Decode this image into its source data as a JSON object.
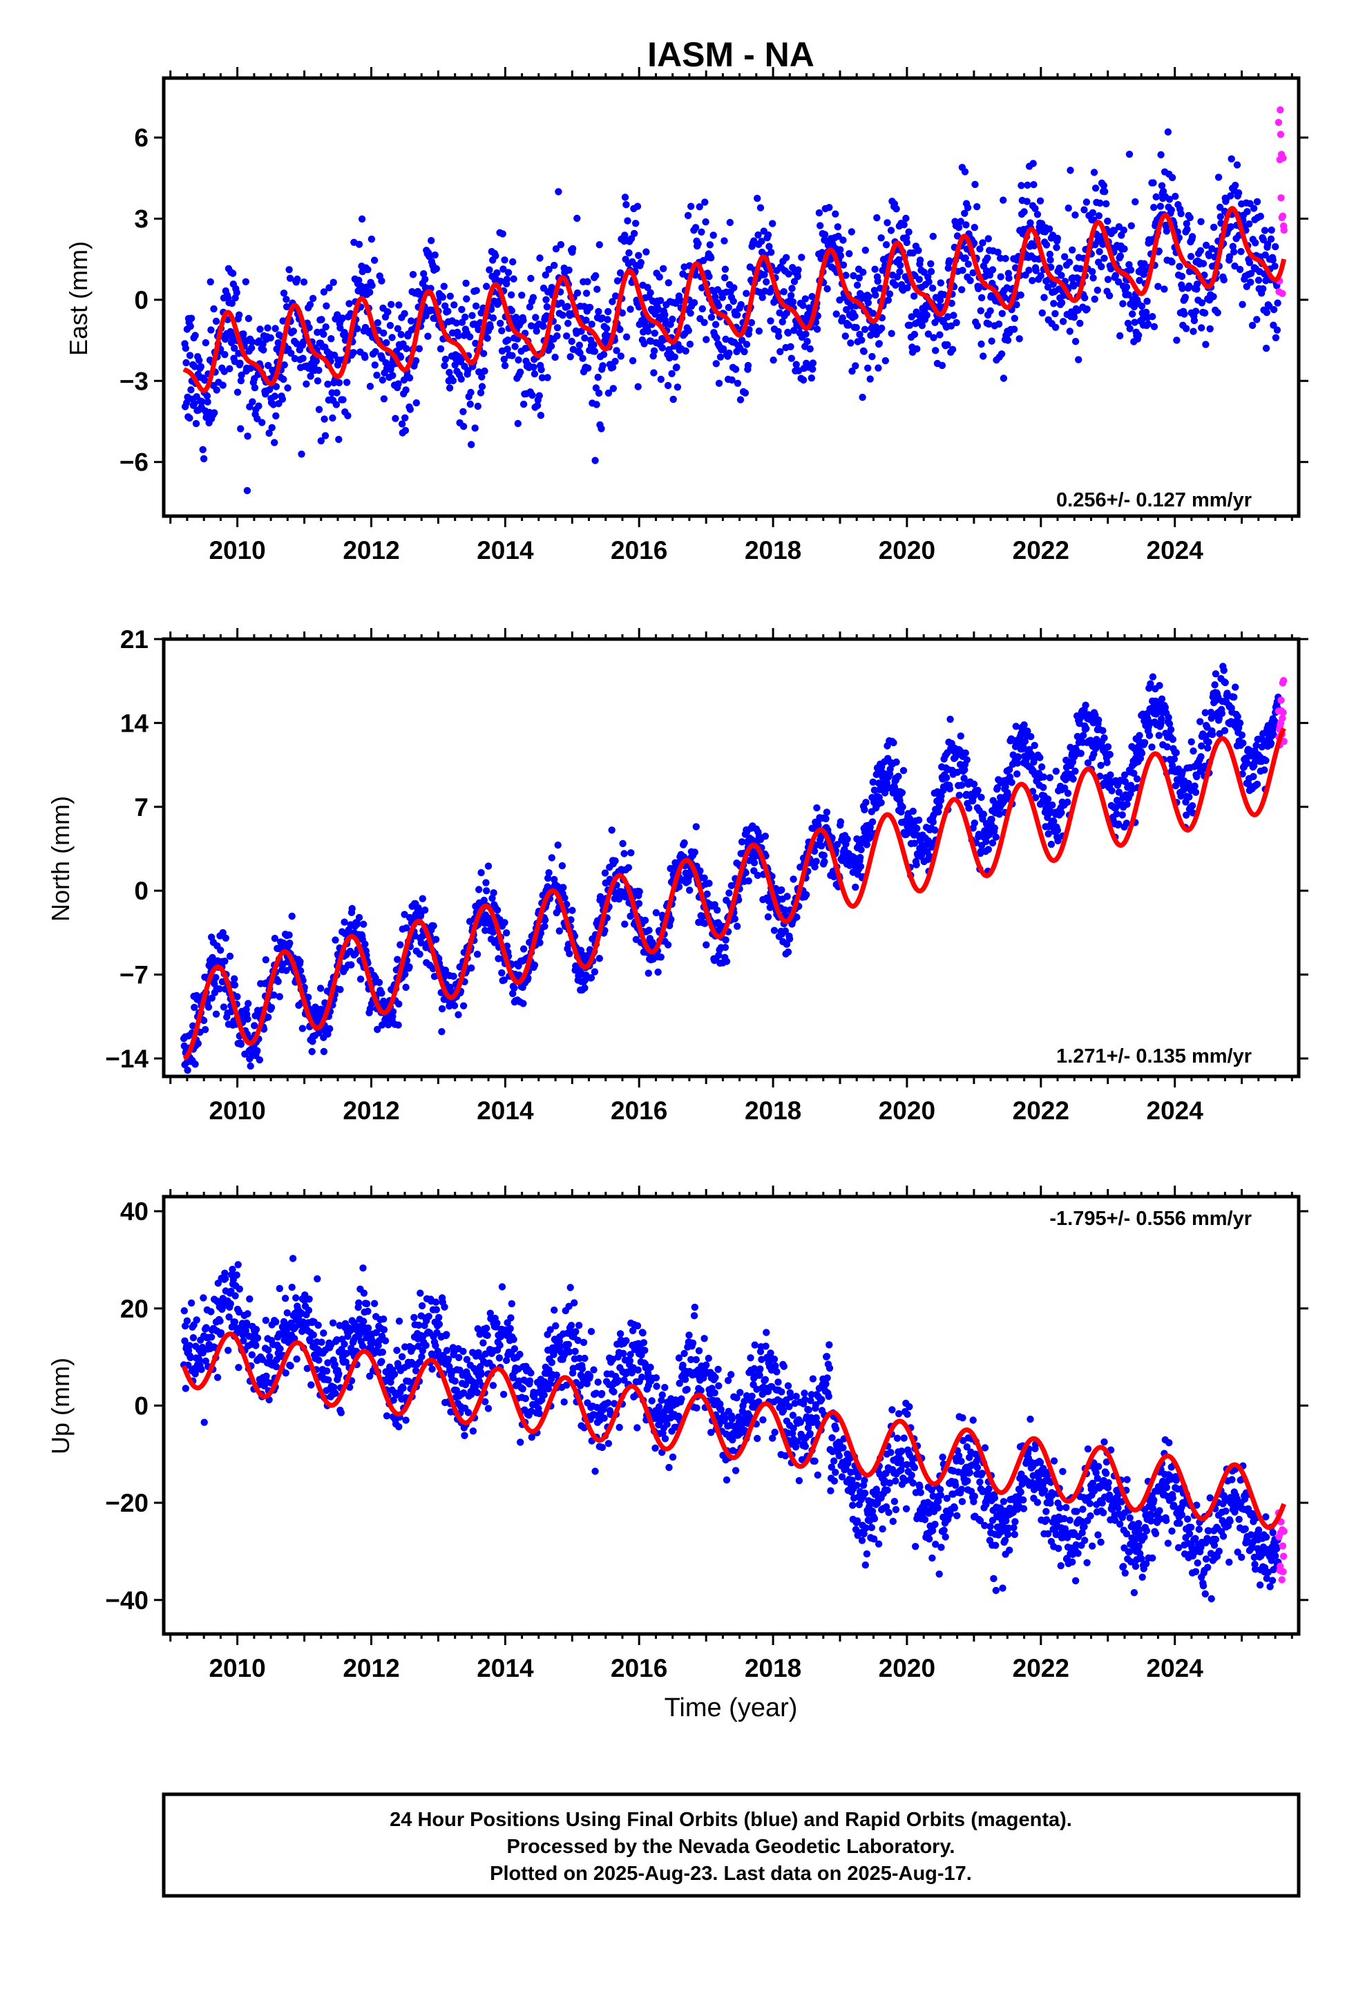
{
  "title": "IASM - NA",
  "colors": {
    "final_orbits": "#0000ff",
    "rapid_orbits": "#ff22ff",
    "model": "#ff0000",
    "frame": "#000000"
  },
  "chart_data": [
    {
      "type": "scatter",
      "name": "east",
      "ylabel": "East (mm)",
      "xlabel": "",
      "xlim": [
        2008.9,
        2025.85
      ],
      "ylim": [
        -8,
        8.2
      ],
      "xticks": [
        "2010",
        "2012",
        "2014",
        "2016",
        "2018",
        "2020",
        "2022",
        "2024"
      ],
      "yticks": [
        "6",
        "3",
        "0",
        "−3",
        "−6"
      ],
      "ytick_values": [
        6,
        3,
        0,
        -3,
        -6
      ],
      "rate_label": "0.256+/- 0.127 mm/yr",
      "rate_position": "bottom-right",
      "start": 2009.2,
      "end_final": 2025.55,
      "end_rapid": 2025.63,
      "trend": {
        "offset": -2.2,
        "rate": 0.256,
        "ref_year": 2009.2
      },
      "seasonal": {
        "amp": 1.2,
        "phase_year": 0.65
      },
      "semiannual": {
        "amp": 0.45,
        "phase_year": 0.2
      },
      "steps": [],
      "noise_sd": 1.2,
      "rapid_range": [
        -0.3,
        8.0
      ]
    },
    {
      "type": "scatter",
      "name": "north",
      "ylabel": "North (mm)",
      "xlabel": "",
      "xlim": [
        2008.9,
        2025.85
      ],
      "ylim": [
        -15.5,
        21
      ],
      "xticks": [
        "2010",
        "2012",
        "2014",
        "2016",
        "2018",
        "2020",
        "2022",
        "2024"
      ],
      "yticks": [
        "21",
        "14",
        "7",
        "0",
        "−7",
        "−14"
      ],
      "ytick_values": [
        21,
        14,
        7,
        0,
        -7,
        -14
      ],
      "rate_label": "1.271+/- 0.135 mm/yr",
      "rate_position": "bottom-right",
      "start": 2009.2,
      "end_final": 2025.55,
      "end_rapid": 2025.63,
      "trend": {
        "offset": -10.5,
        "rate": 1.271,
        "ref_year": 2009.2
      },
      "seasonal": {
        "amp": 3.5,
        "phase_year": 0.45
      },
      "semiannual": {
        "amp": 0.0,
        "phase_year": 0.0
      },
      "steps": [],
      "data_offset_after": {
        "year": 2019.0,
        "value": 3.5
      },
      "noise_sd": 1.3,
      "rapid_range": [
        12,
        18
      ]
    },
    {
      "type": "scatter",
      "name": "up",
      "ylabel": "Up (mm)",
      "xlabel": "Time (year)",
      "xlim": [
        2008.9,
        2025.85
      ],
      "ylim": [
        -47,
        43
      ],
      "xticks": [
        "2010",
        "2012",
        "2014",
        "2016",
        "2018",
        "2020",
        "2022",
        "2024"
      ],
      "yticks": [
        "40",
        "20",
        "0",
        "−20",
        "−40"
      ],
      "ytick_values": [
        40,
        20,
        0,
        -20,
        -40
      ],
      "rate_label": "-1.795+/- 0.556 mm/yr",
      "rate_position": "top-right",
      "start": 2009.2,
      "end_final": 2025.55,
      "end_rapid": 2025.63,
      "trend": {
        "offset": 10.0,
        "rate": -1.795,
        "ref_year": 2009.2
      },
      "seasonal": {
        "amp": 6.0,
        "phase_year": 0.65
      },
      "semiannual": {
        "amp": 0.0,
        "phase_year": 0.0
      },
      "steps": [],
      "data_offset_before": {
        "year": 2018.85,
        "value": 6.0
      },
      "data_offset_after": {
        "year": 2018.85,
        "value": -7.0
      },
      "noise_sd": 4.5,
      "rapid_range": [
        -36,
        -22
      ]
    }
  ],
  "footer": {
    "line1": "24 Hour Positions Using Final Orbits (blue) and Rapid Orbits (magenta).",
    "line2": "Processed by the Nevada Geodetic Laboratory.",
    "line3": "Plotted on 2025-Aug-23. Last data on 2025-Aug-17."
  }
}
